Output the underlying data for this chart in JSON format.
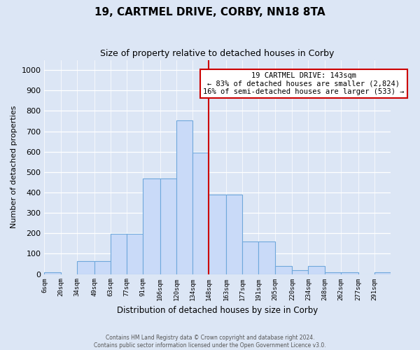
{
  "title": "19, CARTMEL DRIVE, CORBY, NN18 8TA",
  "subtitle": "Size of property relative to detached houses in Corby",
  "xlabel": "Distribution of detached houses by size in Corby",
  "ylabel": "Number of detached properties",
  "bar_labels": [
    "6sqm",
    "20sqm",
    "34sqm",
    "49sqm",
    "63sqm",
    "77sqm",
    "91sqm",
    "106sqm",
    "120sqm",
    "134sqm",
    "148sqm",
    "163sqm",
    "177sqm",
    "191sqm",
    "205sqm",
    "220sqm",
    "234sqm",
    "248sqm",
    "262sqm",
    "277sqm",
    "291sqm"
  ],
  "bin_edges": [
    6,
    20,
    34,
    49,
    63,
    77,
    91,
    106,
    120,
    134,
    148,
    163,
    177,
    191,
    205,
    220,
    234,
    248,
    262,
    277,
    291,
    305
  ],
  "bar_heights": [
    10,
    0,
    65,
    65,
    198,
    198,
    470,
    470,
    755,
    595,
    390,
    390,
    160,
    160,
    40,
    20,
    40,
    10,
    8,
    0,
    8
  ],
  "bar_color": "#c9daf8",
  "bar_edge_color": "#6fa8dc",
  "vline_x": 148,
  "vline_color": "#cc0000",
  "annotation_text": "19 CARTMEL DRIVE: 143sqm\n← 83% of detached houses are smaller (2,824)\n16% of semi-detached houses are larger (533) →",
  "annotation_box_facecolor": "white",
  "annotation_box_edgecolor": "#cc0000",
  "ylim": [
    0,
    1050
  ],
  "yticks": [
    0,
    100,
    200,
    300,
    400,
    500,
    600,
    700,
    800,
    900,
    1000
  ],
  "bg_color": "#dce6f5",
  "grid_color": "white",
  "footer_line1": "Contains HM Land Registry data © Crown copyright and database right 2024.",
  "footer_line2": "Contains public sector information licensed under the Open Government Licence v3.0."
}
